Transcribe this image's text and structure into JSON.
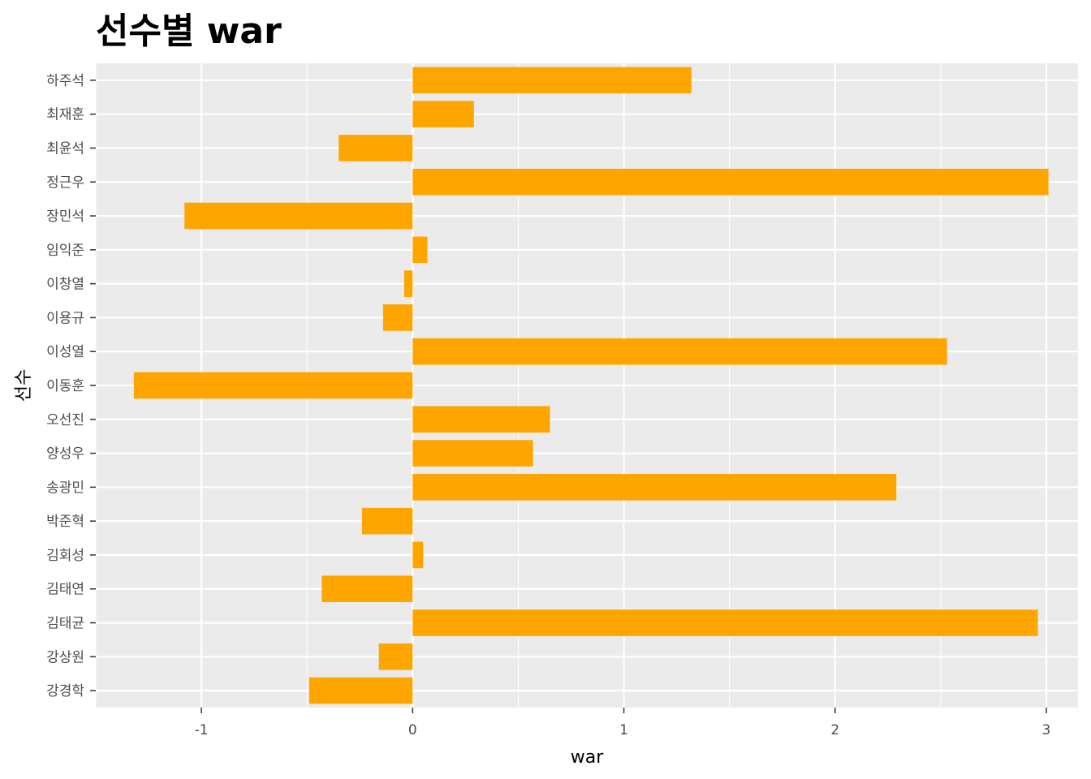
{
  "chart_data": {
    "type": "bar",
    "orientation": "horizontal",
    "title": "선수별 war",
    "xlabel": "war",
    "ylabel": "선수",
    "xlim": [
      -1.5,
      3.15
    ],
    "x_ticks": [
      -1,
      0,
      1,
      2,
      3
    ],
    "x_tick_labels": [
      "-1",
      "0",
      "1",
      "2",
      "3"
    ],
    "grid": true,
    "legend": "none",
    "categories": [
      "하주석",
      "최재훈",
      "최윤석",
      "정근우",
      "장민석",
      "임익준",
      "이창열",
      "이용규",
      "이성열",
      "이동훈",
      "오선진",
      "양성우",
      "송광민",
      "박준혁",
      "김회성",
      "김태연",
      "김태균",
      "강상원",
      "강경학"
    ],
    "values": [
      1.32,
      0.29,
      -0.35,
      3.01,
      -1.08,
      0.07,
      -0.04,
      -0.14,
      2.53,
      -1.32,
      0.65,
      0.57,
      2.29,
      -0.24,
      0.05,
      -0.43,
      2.96,
      -0.16,
      -0.49
    ],
    "colors": {
      "bar": "#FFA500",
      "panel": "#EBEBEB",
      "grid": "#FFFFFF",
      "tick": "#333333"
    }
  }
}
